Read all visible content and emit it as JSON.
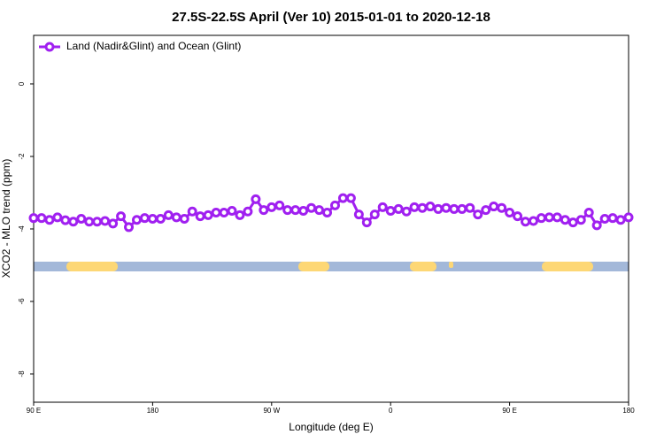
{
  "chart_data": {
    "type": "line",
    "title": "27.5S-22.5S April (Ver 10)   2015-01-01 to 2020-12-18",
    "xlabel": "Longitude (deg E)",
    "ylabel": "XCO2 - MLO trend (ppm)",
    "legend": "upper left",
    "x": [
      90,
      96,
      102,
      108,
      114,
      120,
      126,
      132,
      138,
      144,
      150,
      156,
      162,
      168,
      174,
      180,
      186,
      192,
      198,
      204,
      210,
      216,
      222,
      228,
      234,
      240,
      246,
      252,
      258,
      264,
      270,
      276,
      282,
      288,
      294,
      300,
      306,
      312,
      318,
      324,
      330,
      336,
      342,
      348,
      354,
      360,
      366,
      372,
      378,
      384,
      390,
      396,
      402,
      408,
      414,
      420,
      426,
      432,
      438,
      444,
      450,
      456,
      462,
      468,
      474,
      480,
      486,
      492,
      498,
      504,
      510,
      516,
      522,
      528,
      534,
      540
    ],
    "series": [
      {
        "name": "Land (Nadir&Glint) and Ocean (Glint)",
        "color": "#a020f0",
        "values": [
          -3.7,
          -3.7,
          -3.75,
          -3.68,
          -3.76,
          -3.8,
          -3.72,
          -3.8,
          -3.8,
          -3.78,
          -3.85,
          -3.65,
          -3.95,
          -3.75,
          -3.7,
          -3.72,
          -3.72,
          -3.62,
          -3.68,
          -3.72,
          -3.52,
          -3.65,
          -3.62,
          -3.55,
          -3.55,
          -3.5,
          -3.62,
          -3.52,
          -3.18,
          -3.48,
          -3.4,
          -3.35,
          -3.48,
          -3.48,
          -3.5,
          -3.42,
          -3.48,
          -3.55,
          -3.35,
          -3.15,
          -3.15,
          -3.6,
          -3.82,
          -3.6,
          -3.4,
          -3.5,
          -3.45,
          -3.52,
          -3.4,
          -3.42,
          -3.38,
          -3.45,
          -3.42,
          -3.45,
          -3.45,
          -3.42,
          -3.6,
          -3.48,
          -3.38,
          -3.42,
          -3.55,
          -3.65,
          -3.8,
          -3.78,
          -3.7,
          -3.68,
          -3.68,
          -3.75,
          -3.82,
          -3.75,
          -3.55,
          -3.9,
          -3.72,
          -3.7,
          -3.75,
          -3.68
        ]
      }
    ],
    "xlim": [
      90,
      540
    ],
    "xticks": [
      {
        "value": 90,
        "label": "90 E"
      },
      180,
      {
        "value": 270,
        "label": "90 W"
      },
      {
        "value": 360,
        "label": "0"
      },
      {
        "value": 450,
        "label": "90 E"
      },
      {
        "value": 540,
        "label": "180"
      }
    ],
    "ylim": [
      -8.78,
      1.34
    ],
    "yticks": [
      0,
      -2,
      -4,
      -6,
      -8
    ]
  }
}
